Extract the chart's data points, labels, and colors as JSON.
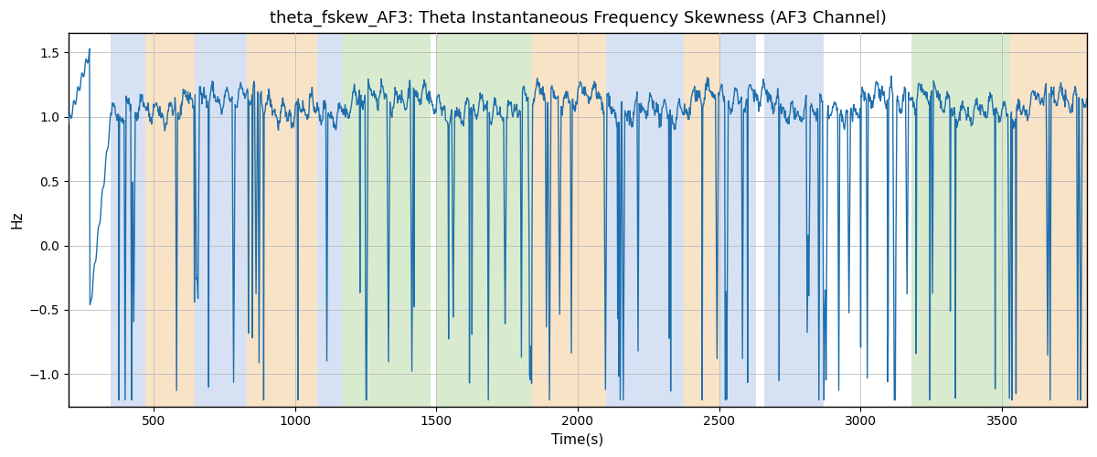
{
  "title": "theta_fskew_AF3: Theta Instantaneous Frequency Skewness (AF3 Channel)",
  "xlabel": "Time(s)",
  "ylabel": "Hz",
  "xlim": [
    200,
    3800
  ],
  "ylim": [
    -1.25,
    1.65
  ],
  "line_color": "#1f6fad",
  "line_width": 1.0,
  "background_color": "#ffffff",
  "grid_color": "#bbbbbb",
  "title_fontsize": 13,
  "label_fontsize": 11,
  "tick_fontsize": 10,
  "regions": [
    {
      "start": 350,
      "end": 470,
      "color": "#aec6e8",
      "alpha": 0.5
    },
    {
      "start": 470,
      "end": 645,
      "color": "#f5c990",
      "alpha": 0.5
    },
    {
      "start": 645,
      "end": 830,
      "color": "#aec6e8",
      "alpha": 0.5
    },
    {
      "start": 830,
      "end": 1080,
      "color": "#f5c990",
      "alpha": 0.5
    },
    {
      "start": 1080,
      "end": 1170,
      "color": "#aec6e8",
      "alpha": 0.5
    },
    {
      "start": 1170,
      "end": 1480,
      "color": "#b5d8a0",
      "alpha": 0.5
    },
    {
      "start": 1500,
      "end": 1840,
      "color": "#b5d8a0",
      "alpha": 0.5
    },
    {
      "start": 1840,
      "end": 2100,
      "color": "#f5c990",
      "alpha": 0.5
    },
    {
      "start": 2100,
      "end": 2375,
      "color": "#aec6e8",
      "alpha": 0.5
    },
    {
      "start": 2375,
      "end": 2500,
      "color": "#f5c990",
      "alpha": 0.5
    },
    {
      "start": 2500,
      "end": 2630,
      "color": "#aec6e8",
      "alpha": 0.5
    },
    {
      "start": 2660,
      "end": 2870,
      "color": "#aec6e8",
      "alpha": 0.5
    },
    {
      "start": 3180,
      "end": 3530,
      "color": "#b5d8a0",
      "alpha": 0.5
    },
    {
      "start": 3530,
      "end": 3800,
      "color": "#f5c990",
      "alpha": 0.5
    }
  ],
  "seed": 42
}
